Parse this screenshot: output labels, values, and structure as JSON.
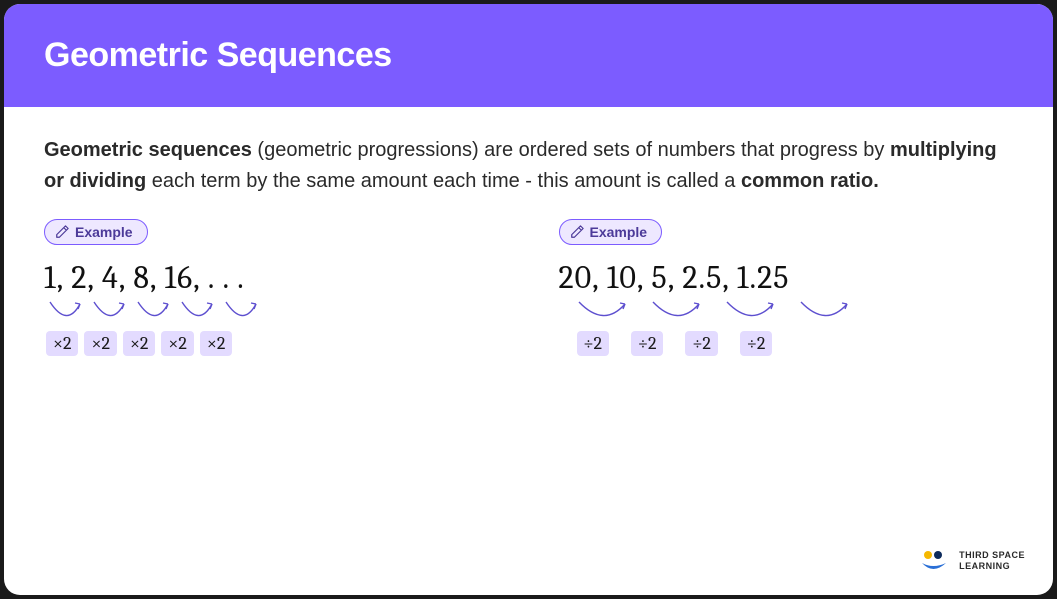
{
  "colors": {
    "header_bg": "#7c5cff",
    "badge_bg": "#eee8ff",
    "badge_border": "#7c5cff",
    "badge_text": "#4c3a99",
    "arrow_stroke": "#5d4fcf",
    "op_bg": "#e3dbff",
    "op_text": "#1a1a1a",
    "logo_yellow": "#f5b800",
    "logo_blue": "#2a6fd6",
    "logo_navy": "#0d2b5c"
  },
  "header": {
    "title": "Geometric Sequences"
  },
  "intro": {
    "strong1": "Geometric sequences",
    "text1": " (geometric progressions) are ordered sets of numbers that progress by ",
    "strong2": "multiplying or dividing",
    "text2": " each term by the same amount each time - this amount is called a ",
    "strong3": "common ratio."
  },
  "badge_label": "Example",
  "example1": {
    "sequence": "1,  2,  4,  8,  16, . . .",
    "ops": [
      "×2",
      "×2",
      "×2",
      "×2",
      "×2"
    ],
    "arrow_count": 5,
    "arrow_width": 38
  },
  "example2": {
    "sequence": "20,   10,   5,   2.5,  1.25",
    "ops": [
      "÷2",
      "÷2",
      "÷2",
      "÷2"
    ],
    "arrow_count": 4,
    "arrow_width": 54
  },
  "footer": {
    "line1": "THIRD SPACE",
    "line2": "LEARNING"
  }
}
